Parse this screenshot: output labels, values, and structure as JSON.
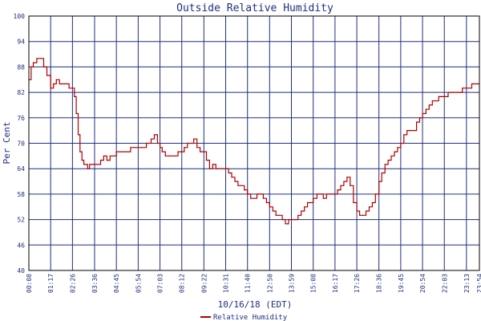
{
  "chart_data": {
    "type": "line",
    "title": "Outside Relative Humidity",
    "xlabel": "10/16/18 (EDT)",
    "ylabel": "Per Cent",
    "ylim": [
      40,
      100
    ],
    "yticks": [
      40,
      46,
      52,
      58,
      64,
      70,
      76,
      82,
      88,
      94,
      100
    ],
    "xticks": [
      "00:08",
      "01:17",
      "02:26",
      "03:36",
      "04:45",
      "05:54",
      "07:03",
      "08:12",
      "09:22",
      "10:31",
      "11:40",
      "12:50",
      "13:59",
      "15:08",
      "16:17",
      "17:26",
      "18:36",
      "19:45",
      "20:54",
      "22:03",
      "23:13",
      "23:54"
    ],
    "grid": true,
    "legend": "bottom-center",
    "colors": {
      "line": "#b00000",
      "grid": "#1f2f7f",
      "axes": "#000000",
      "text": "#1f2f7f"
    },
    "series": [
      {
        "name": "Relative Humidity",
        "x": [
          "00:08",
          "00:15",
          "00:22",
          "00:33",
          "00:45",
          "00:55",
          "01:05",
          "01:17",
          "01:26",
          "01:35",
          "01:45",
          "01:55",
          "02:05",
          "02:15",
          "02:26",
          "02:32",
          "02:38",
          "02:44",
          "02:50",
          "02:56",
          "03:02",
          "03:08",
          "03:14",
          "03:20",
          "03:28",
          "03:36",
          "03:45",
          "03:55",
          "04:05",
          "04:15",
          "04:25",
          "04:35",
          "04:45",
          "05:00",
          "05:15",
          "05:30",
          "05:45",
          "05:54",
          "06:05",
          "06:20",
          "06:35",
          "06:45",
          "06:55",
          "07:03",
          "07:10",
          "07:20",
          "07:30",
          "07:40",
          "07:50",
          "08:00",
          "08:12",
          "08:20",
          "08:30",
          "08:40",
          "08:50",
          "09:00",
          "09:10",
          "09:22",
          "09:30",
          "09:40",
          "09:50",
          "10:00",
          "10:10",
          "10:20",
          "10:31",
          "10:40",
          "10:50",
          "11:00",
          "11:10",
          "11:20",
          "11:30",
          "11:40",
          "11:50",
          "12:00",
          "12:10",
          "12:20",
          "12:30",
          "12:40",
          "12:50",
          "13:00",
          "13:10",
          "13:20",
          "13:30",
          "13:40",
          "13:50",
          "13:59",
          "14:10",
          "14:20",
          "14:30",
          "14:40",
          "14:50",
          "15:00",
          "15:08",
          "15:20",
          "15:30",
          "15:40",
          "15:50",
          "16:00",
          "16:10",
          "16:17",
          "16:25",
          "16:35",
          "16:45",
          "16:55",
          "17:05",
          "17:15",
          "17:26",
          "17:35",
          "17:45",
          "17:55",
          "18:05",
          "18:15",
          "18:25",
          "18:36",
          "18:45",
          "18:55",
          "19:05",
          "19:15",
          "19:25",
          "19:35",
          "19:45",
          "19:55",
          "20:05",
          "20:15",
          "20:25",
          "20:35",
          "20:45",
          "20:54",
          "21:05",
          "21:15",
          "21:25",
          "21:35",
          "21:45",
          "21:55",
          "22:03",
          "22:15",
          "22:30",
          "22:45",
          "23:00",
          "23:13",
          "23:30",
          "23:54"
        ],
        "y": [
          85,
          88,
          89,
          90,
          90,
          88,
          86,
          83,
          84,
          85,
          84,
          84,
          84,
          83,
          83,
          81,
          77,
          72,
          68,
          66,
          65,
          65,
          64,
          65,
          65,
          65,
          65,
          66,
          67,
          66,
          67,
          67,
          68,
          68,
          68,
          69,
          69,
          69,
          69,
          70,
          71,
          72,
          70,
          69,
          68,
          67,
          67,
          67,
          67,
          68,
          68,
          69,
          70,
          70,
          71,
          69,
          68,
          68,
          66,
          64,
          65,
          64,
          64,
          64,
          64,
          63,
          62,
          61,
          60,
          60,
          59,
          58,
          57,
          57,
          58,
          58,
          57,
          56,
          55,
          54,
          53,
          53,
          52,
          51,
          52,
          52,
          52,
          53,
          54,
          55,
          56,
          56,
          57,
          58,
          58,
          57,
          58,
          58,
          58,
          58,
          59,
          60,
          61,
          62,
          60,
          56,
          54,
          53,
          53,
          54,
          55,
          56,
          58,
          61,
          63,
          65,
          66,
          67,
          68,
          69,
          70,
          72,
          73,
          73,
          73,
          75,
          76,
          77,
          78,
          79,
          80,
          80,
          81,
          81,
          81,
          82,
          82,
          82,
          83,
          83,
          84,
          84
        ]
      }
    ]
  }
}
